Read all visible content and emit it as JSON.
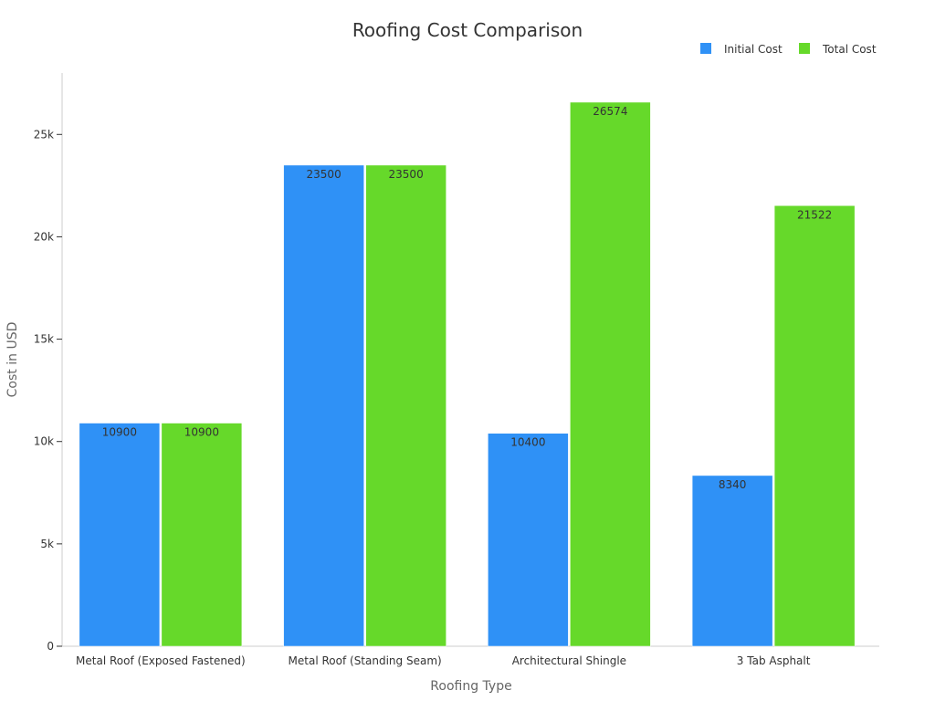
{
  "chart_data": {
    "type": "bar",
    "title": "Roofing Cost Comparison",
    "xlabel": "Roofing Type",
    "ylabel": "Cost in USD",
    "categories": [
      "Metal Roof (Exposed Fastened)",
      "Metal Roof (Standing Seam)",
      "Architectural Shingle",
      "3 Tab Asphalt"
    ],
    "series": [
      {
        "name": "Initial Cost",
        "color": "#2F91F6",
        "values": [
          10900,
          23500,
          10400,
          8340
        ]
      },
      {
        "name": "Total Cost",
        "color": "#66D92A",
        "values": [
          10900,
          23500,
          26574,
          21522
        ]
      }
    ],
    "ylim": [
      0,
      28000
    ],
    "yticks": [
      0,
      5000,
      10000,
      15000,
      20000,
      25000
    ],
    "ytick_labels": [
      "0",
      "5k",
      "10k",
      "15k",
      "20k",
      "25k"
    ],
    "grid": false,
    "legend_position": "top-right"
  }
}
